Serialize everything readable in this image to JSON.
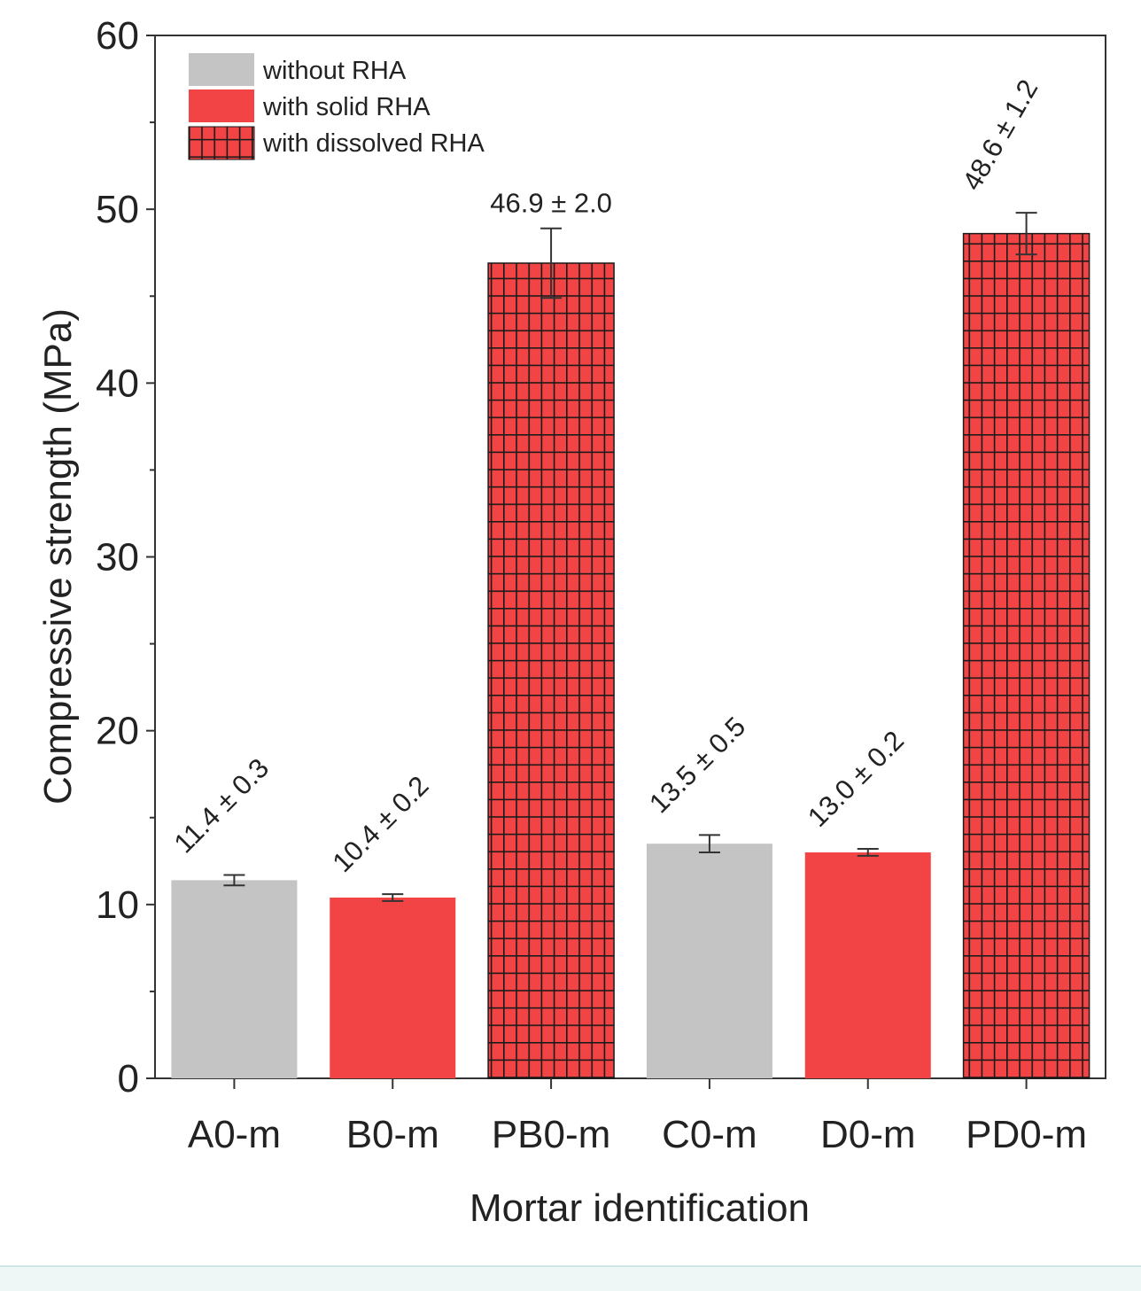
{
  "chart_data": {
    "type": "bar",
    "title": "",
    "xlabel": "Mortar identification",
    "ylabel": "Compressive strength (MPa)",
    "ylim": [
      0,
      60
    ],
    "yticks": [
      0,
      10,
      20,
      30,
      40,
      50,
      60
    ],
    "ytick_labels": [
      "0",
      "10",
      "20",
      "30",
      "40",
      "50",
      "60"
    ],
    "categories": [
      "A0-m",
      "B0-m",
      "PB0-m",
      "C0-m",
      "D0-m",
      "PD0-m"
    ],
    "values": [
      11.4,
      10.4,
      46.9,
      13.5,
      13.0,
      48.6
    ],
    "errors": [
      0.3,
      0.2,
      2.0,
      0.5,
      0.2,
      1.2
    ],
    "groups": [
      "without",
      "solid",
      "dissolved",
      "without",
      "solid",
      "dissolved"
    ],
    "data_labels": [
      "11.4 ± 0.3",
      "10.4 ± 0.2",
      "46.9 ± 2.0",
      "13.5 ± 0.5",
      "13.0 ± 0.2",
      "48.6 ± 1.2"
    ],
    "label_rotation": [
      -45,
      -45,
      0,
      -45,
      -45,
      -60
    ],
    "legend": {
      "position": "top-left",
      "entries": [
        {
          "key": "without",
          "label": "without RHA",
          "color": "#c4c4c4",
          "pattern": "solid"
        },
        {
          "key": "solid",
          "label": "with solid RHA",
          "color": "#f24444",
          "pattern": "solid"
        },
        {
          "key": "dissolved",
          "label": "with dissolved RHA",
          "color": "#f24444",
          "pattern": "grid"
        }
      ]
    },
    "grid": false
  }
}
